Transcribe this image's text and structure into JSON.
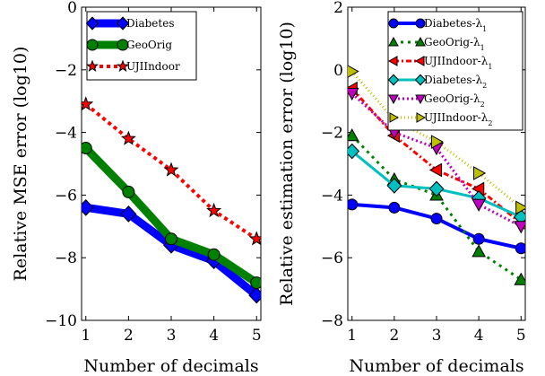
{
  "chart_data": [
    {
      "type": "line",
      "xlabel": "Number of decimals",
      "ylabel": "Relative MSE error (log10)",
      "x": [
        1,
        2,
        3,
        4,
        5
      ],
      "xlim": [
        0.9,
        5.1
      ],
      "ylim": [
        -10,
        0
      ],
      "xticks": [
        1,
        2,
        3,
        4,
        5
      ],
      "yticks": [
        0,
        -2,
        -4,
        -6,
        -8,
        -10
      ],
      "xtick_labels": [
        "1",
        "2",
        "3",
        "4",
        "5"
      ],
      "ytick_labels": [
        "0",
        "−2",
        "−4",
        "−6",
        "−8",
        "−10"
      ],
      "legend": "top-left",
      "grid": false,
      "series": [
        {
          "name": "Diabetes",
          "values": [
            -6.4,
            -6.6,
            -7.6,
            -8.1,
            -9.2
          ],
          "color": "#0000ff",
          "marker": "diamond",
          "width": 9,
          "dash": ""
        },
        {
          "name": "GeoOrig",
          "values": [
            -4.5,
            -5.9,
            -7.4,
            -7.9,
            -8.8
          ],
          "color": "#008000",
          "marker": "circle",
          "width": 9,
          "dash": ""
        },
        {
          "name": "UJIIndoor",
          "values": [
            -3.1,
            -4.2,
            -5.2,
            -6.5,
            -7.4
          ],
          "color": "#ff0000",
          "marker": "star",
          "width": 4,
          "dash": "4 4"
        }
      ]
    },
    {
      "type": "line",
      "xlabel": "Number of decimals",
      "ylabel": "Relative estimation error (log10)",
      "x": [
        1,
        2,
        3,
        4,
        5
      ],
      "xlim": [
        0.9,
        5.1
      ],
      "ylim": [
        -8,
        2
      ],
      "xticks": [
        1,
        2,
        3,
        4,
        5
      ],
      "yticks": [
        2,
        0,
        -2,
        -4,
        -6,
        -8
      ],
      "xtick_labels": [
        "1",
        "2",
        "3",
        "4",
        "5"
      ],
      "ytick_labels": [
        "2",
        "0",
        "−2",
        "−4",
        "−6",
        "−8"
      ],
      "legend": "top-right",
      "grid": false,
      "series": [
        {
          "name": "Diabetes-λ",
          "subscript": "1",
          "values": [
            -4.3,
            -4.4,
            -4.75,
            -5.4,
            -5.7
          ],
          "color": "#0000ff",
          "marker": "circle",
          "width": 4,
          "dash": ""
        },
        {
          "name": "GeoOrig-λ",
          "subscript": "1",
          "values": [
            -2.1,
            -3.5,
            -4.0,
            -5.8,
            -6.7
          ],
          "color": "#008000",
          "marker": "triangle-up",
          "width": 3,
          "dash": "3 5"
        },
        {
          "name": "UJIIndoor-λ",
          "subscript": "1",
          "values": [
            -0.6,
            -2.1,
            -3.2,
            -3.8,
            -4.9
          ],
          "color": "#ff0000",
          "marker": "triangle-left",
          "width": 3,
          "dash": "6 3 2 3"
        },
        {
          "name": "Diabetes-λ",
          "subscript": "2",
          "values": [
            -2.6,
            -3.7,
            -3.8,
            -4.1,
            -4.7
          ],
          "color": "#00bfbf",
          "marker": "diamond",
          "width": 3,
          "dash": ""
        },
        {
          "name": "GeoOrig-λ",
          "subscript": "2",
          "values": [
            -0.75,
            -2.0,
            -2.5,
            -4.3,
            -5.0
          ],
          "color": "#bf00bf",
          "marker": "triangle-down",
          "width": 3,
          "dash": "2 3"
        },
        {
          "name": "UJIIndoor-λ",
          "subscript": "2",
          "values": [
            -0.05,
            -1.6,
            -2.3,
            -3.3,
            -4.4
          ],
          "color": "#bfbf00",
          "marker": "triangle-right",
          "width": 3,
          "dash": "1 3"
        }
      ]
    }
  ]
}
